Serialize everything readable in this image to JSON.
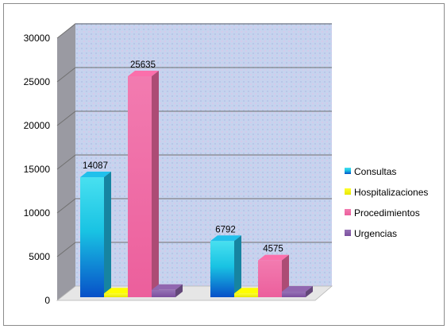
{
  "chart_data": {
    "type": "bar",
    "categories": [
      "",
      ""
    ],
    "series": [
      {
        "name": "Consultas",
        "values": [
          14087,
          6792
        ],
        "color": "#1fb7e0"
      },
      {
        "name": "Hospitalizaciones",
        "values": [
          800,
          800
        ],
        "color": "#f2f200"
      },
      {
        "name": "Procedimientos",
        "values": [
          25635,
          4575
        ],
        "color": "#ef6aa3"
      },
      {
        "name": "Urgencias",
        "values": [
          1200,
          1000
        ],
        "color": "#8a62a8"
      }
    ],
    "data_labels": [
      "14087",
      "25635",
      "6792",
      "4575"
    ],
    "ylim": [
      0,
      30000
    ],
    "yticks": [
      "0",
      "5000",
      "10000",
      "15000",
      "20000",
      "25000",
      "30000"
    ],
    "grid": true,
    "legend_position": "right"
  }
}
